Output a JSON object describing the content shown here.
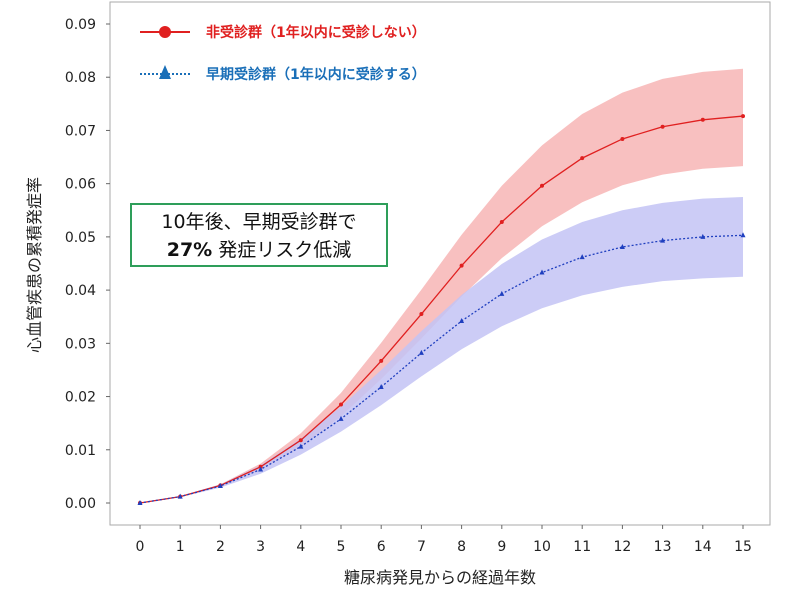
{
  "chart_data": {
    "type": "line",
    "xlabel": "糖尿病発見からの経過年数",
    "ylabel": "心血管疾患の累積発症率",
    "x": [
      0,
      1,
      2,
      3,
      4,
      5,
      6,
      7,
      8,
      9,
      10,
      11,
      12,
      13,
      14,
      15
    ],
    "xlim": [
      0,
      15
    ],
    "ylim": [
      0,
      0.09
    ],
    "yticks": [
      "0.00",
      "0.01",
      "0.02",
      "0.03",
      "0.04",
      "0.05",
      "0.06",
      "0.07",
      "0.08",
      "0.09"
    ],
    "grid": false,
    "legend_placement": "top-left",
    "series": [
      {
        "name": "非受診群（1年以内に受診しない）",
        "color": "#e02020",
        "band_color": "#f7b5b5",
        "marker": "circle",
        "line": "solid",
        "values": [
          0,
          0.0012,
          0.0033,
          0.0068,
          0.0118,
          0.0185,
          0.0267,
          0.0355,
          0.0446,
          0.0528,
          0.0596,
          0.0648,
          0.0684,
          0.0707,
          0.072,
          0.0727
        ],
        "lower": [
          0,
          0.0011,
          0.0031,
          0.0062,
          0.0105,
          0.0163,
          0.0233,
          0.0309,
          0.0388,
          0.046,
          0.052,
          0.0565,
          0.0597,
          0.0617,
          0.0628,
          0.0633
        ],
        "upper": [
          0,
          0.0013,
          0.0035,
          0.0074,
          0.0131,
          0.0207,
          0.0301,
          0.0401,
          0.0504,
          0.0596,
          0.0672,
          0.0731,
          0.0771,
          0.0797,
          0.081,
          0.0816
        ]
      },
      {
        "name": "早期受診群（1年以内に受診する）",
        "color": "#1f3fbf",
        "band_color": "#c3c3f5",
        "marker": "triangle",
        "line": "dotted",
        "values": [
          0,
          0.0012,
          0.0032,
          0.0063,
          0.0106,
          0.0158,
          0.0218,
          0.0282,
          0.0342,
          0.0393,
          0.0433,
          0.0462,
          0.0481,
          0.0493,
          0.05,
          0.0503
        ],
        "lower": [
          0,
          0.0011,
          0.0029,
          0.0055,
          0.0091,
          0.0134,
          0.0184,
          0.0238,
          0.0289,
          0.0332,
          0.0366,
          0.039,
          0.0406,
          0.0417,
          0.0422,
          0.0425
        ],
        "upper": [
          0,
          0.0013,
          0.0035,
          0.0071,
          0.0121,
          0.0181,
          0.025,
          0.0323,
          0.0391,
          0.0449,
          0.0495,
          0.0528,
          0.055,
          0.0564,
          0.0572,
          0.0575
        ]
      }
    ],
    "legend_text_colors": [
      "#e02020",
      "#1a6fb8"
    ],
    "annotation": {
      "line1": "10年後、早期受診群で",
      "bold": "27%",
      "line2_rest": " 発症リスク低減",
      "border_color": "#2e9e5a"
    }
  }
}
